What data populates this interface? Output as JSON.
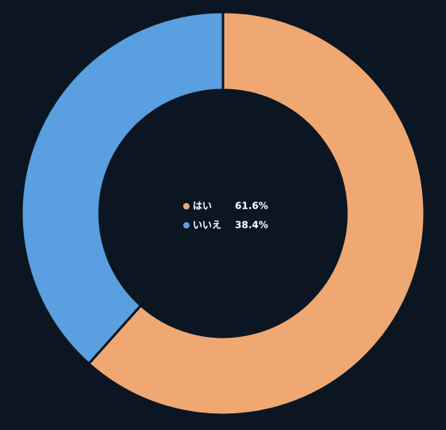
{
  "chart_data": {
    "type": "pie",
    "donut": true,
    "categories": [
      "はい",
      "いいえ"
    ],
    "values": [
      61.6,
      38.4
    ],
    "value_labels": [
      "61.6%",
      "38.4%"
    ],
    "colors": [
      "#f0a872",
      "#5a9fe0"
    ]
  }
}
